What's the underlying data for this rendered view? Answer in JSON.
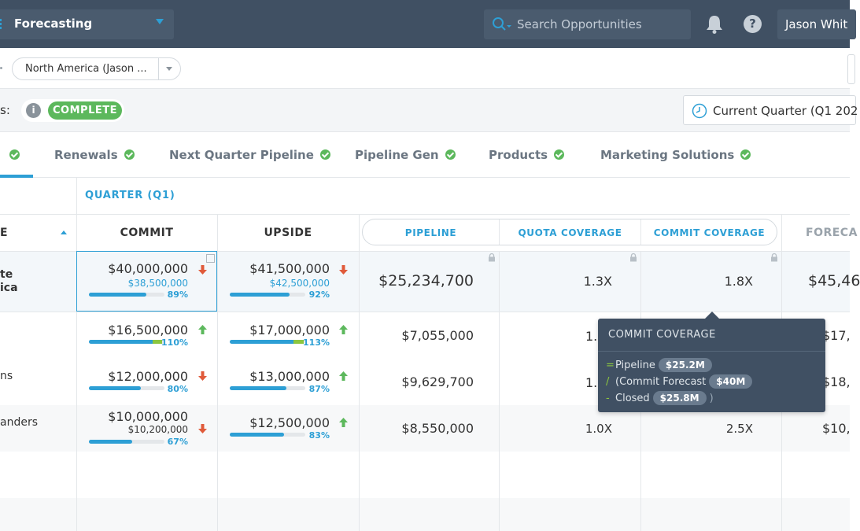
{
  "topbar": {
    "app_name": "Forecasting",
    "search_placeholder": "Search Opportunities",
    "help_label": "?",
    "user_name": "Jason Whit"
  },
  "filters": {
    "region": "North America (Jason ..."
  },
  "status": {
    "label": "s:",
    "info": "i",
    "badge": "COMPLETE",
    "period": "Current Quarter (Q1 202"
  },
  "tabs": [
    {
      "label": "Renewals"
    },
    {
      "label": "Next Quarter Pipeline"
    },
    {
      "label": "Pipeline Gen"
    },
    {
      "label": "Products"
    },
    {
      "label": "Marketing Solutions"
    }
  ],
  "table": {
    "group_header": "QUARTER (Q1)",
    "name_header_fragment": "E",
    "commit_header": "COMMIT",
    "upside_header": "UPSIDE",
    "pipeline_header": "PIPELINE",
    "quota_coverage_header": "QUOTA COVERAGE",
    "commit_coverage_header": "COMMIT COVERAGE",
    "forecast_header": "FORECA",
    "rows": [
      {
        "name_line1": "te",
        "name_line2": "ica",
        "commit": "$40,000,000",
        "commit_sub": "$38,500,000",
        "commit_pct": "89%",
        "commit_progress": 0.89,
        "commit_trend": "down",
        "upside": "$41,500,000",
        "upside_sub": "$42,500,000",
        "upside_pct": "92%",
        "upside_progress": 0.92,
        "upside_trend": "down",
        "pipeline": "$25,234,700",
        "quota_cov": "1.3X",
        "commit_cov": "1.8X",
        "forecast": "$45,46"
      },
      {
        "name_line1": "",
        "commit": "$16,500,000",
        "commit_pct": "110%",
        "commit_progress": 1.1,
        "commit_trend": "up",
        "upside": "$17,000,000",
        "upside_pct": "113%",
        "upside_progress": 1.13,
        "upside_trend": "up",
        "pipeline": "$7,055,000",
        "quota_cov": "1.",
        "commit_cov": "",
        "forecast": "$17,"
      },
      {
        "name_line1": "ns",
        "commit": "$12,000,000",
        "commit_pct": "80%",
        "commit_progress": 0.8,
        "commit_trend": "down",
        "upside": "$13,000,000",
        "upside_pct": "87%",
        "upside_progress": 0.87,
        "upside_trend": "up",
        "pipeline": "$9,629,700",
        "quota_cov": "1.",
        "commit_cov": "",
        "forecast": "$18,"
      },
      {
        "name_line1": "anders",
        "commit": "$10,000,000",
        "commit_sub": "$10,200,000",
        "commit_pct": "67%",
        "commit_progress": 0.67,
        "commit_trend": "down",
        "upside": "$12,500,000",
        "upside_pct": "83%",
        "upside_progress": 0.83,
        "upside_trend": "up",
        "pipeline": "$8,550,000",
        "quota_cov": "1.0X",
        "commit_cov": "2.5X",
        "forecast": "$10,"
      }
    ]
  },
  "tooltip": {
    "title": "COMMIT COVERAGE",
    "lines": [
      {
        "op": "=",
        "text": "Pipeline",
        "badge": "$25.2M",
        "suffix": ""
      },
      {
        "op": "/",
        "text": "(Commit Forecast",
        "badge": "$40M",
        "suffix": ""
      },
      {
        "op": "-",
        "text": "Closed",
        "badge": "$25.8M",
        "suffix": ")"
      }
    ]
  },
  "colors": {
    "accent": "#2d9fd5",
    "success": "#5cb85c",
    "trend_up": "#5cb85c",
    "trend_down": "#e05a3a",
    "topbar": "#405063"
  },
  "icons": {
    "app": "grid-icon",
    "search": "search-icon",
    "bell": "bell-icon",
    "help": "help-icon",
    "clock": "clock-icon",
    "check": "check-circle-icon",
    "lock": "lock-icon",
    "edit": "edit-icon"
  }
}
